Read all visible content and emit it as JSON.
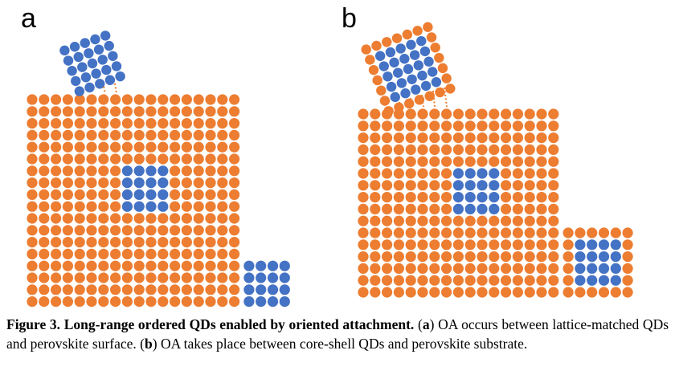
{
  "panels": {
    "a": {
      "label": "a"
    },
    "b": {
      "label": "b"
    }
  },
  "colors": {
    "perovskite": "#ED7D31",
    "quantum_dot": "#4472C4",
    "background": "#FFFFFF"
  },
  "caption": {
    "fig_label": "Figure 3.",
    "title": "Long-range ordered QDs enabled by oriented attachment.",
    "part_a_open": "(",
    "part_a_letter": "a",
    "part_a_text": ") OA occurs between lattice-matched QDs and perovskite surface. (",
    "part_b_letter": "b",
    "part_b_text": ") OA takes place between core-shell QDs and perovskite substrate."
  }
}
